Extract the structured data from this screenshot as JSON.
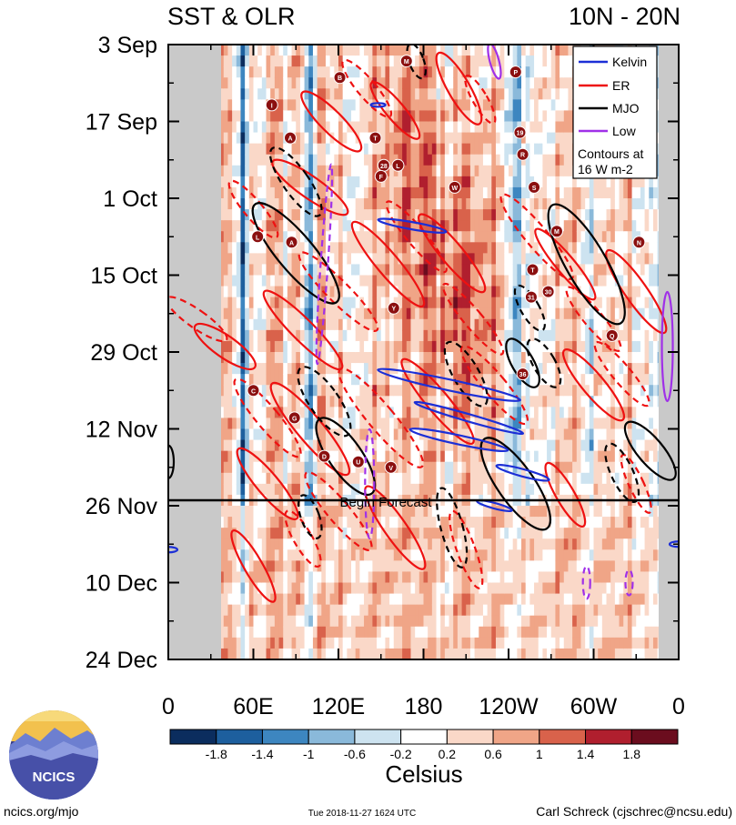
{
  "chart_data": {
    "type": "heatmap",
    "title_left": "SST & OLR",
    "title_right": "10N - 20N",
    "x_tick_labels": [
      "0",
      "60E",
      "120E",
      "180",
      "120W",
      "60W",
      "0"
    ],
    "x_ticks_deg": [
      0,
      60,
      120,
      180,
      240,
      300,
      360
    ],
    "y_tick_labels": [
      "3 Sep",
      "17 Sep",
      "1 Oct",
      "15 Oct",
      "29 Oct",
      "12 Nov",
      "26 Nov",
      "10 Dec",
      "24 Dec"
    ],
    "y_ticks_day": [
      0,
      14,
      28,
      42,
      56,
      70,
      84,
      98,
      112
    ],
    "xlim_deg": [
      0,
      360
    ],
    "ylim_days": [
      0,
      112
    ],
    "forecast_line": {
      "day": 83,
      "label": "Begin Forecast"
    },
    "legend": {
      "entries": [
        {
          "name": "Kelvin",
          "color": "#1c2fd6",
          "style": "solid"
        },
        {
          "name": "ER",
          "color": "#ee1111",
          "style": "solid"
        },
        {
          "name": "MJO",
          "color": "#000000",
          "style": "solid"
        },
        {
          "name": "Low",
          "color": "#a030e8",
          "style": "solid"
        }
      ],
      "note_line1": "Contours at",
      "note_line2": "16 W m-2"
    },
    "colorbar": {
      "label": "Celsius",
      "ticks": [
        "-1.8",
        "-1.4",
        "-1",
        "-0.6",
        "-0.2",
        "0.2",
        "0.6",
        "1",
        "1.4",
        "1.8"
      ],
      "colors": [
        "#0b2d5e",
        "#1d5f9e",
        "#3d86c0",
        "#8ab9da",
        "#cde3f0",
        "#ffffff",
        "#fad8c8",
        "#f0a587",
        "#d9624b",
        "#b01f2e",
        "#6b0d1e"
      ]
    },
    "storms": [
      {
        "label": "M",
        "lon": 168,
        "day": 3
      },
      {
        "label": "P",
        "lon": 245,
        "day": 5
      },
      {
        "label": "B",
        "lon": 121,
        "day": 6
      },
      {
        "label": "I",
        "lon": 73,
        "day": 11
      },
      {
        "label": "19",
        "lon": 248,
        "day": 16
      },
      {
        "label": "T",
        "lon": 146,
        "day": 17
      },
      {
        "label": "A",
        "lon": 86,
        "day": 17
      },
      {
        "label": "R",
        "lon": 250,
        "day": 20
      },
      {
        "label": "28",
        "lon": 152,
        "day": 22
      },
      {
        "label": "L",
        "lon": 162,
        "day": 22
      },
      {
        "label": "F",
        "lon": 150,
        "day": 24
      },
      {
        "label": "W",
        "lon": 202,
        "day": 26
      },
      {
        "label": "S",
        "lon": 258,
        "day": 26
      },
      {
        "label": "M",
        "lon": 274,
        "day": 34
      },
      {
        "label": "L",
        "lon": 63,
        "day": 35
      },
      {
        "label": "A",
        "lon": 87,
        "day": 36
      },
      {
        "label": "N",
        "lon": 332,
        "day": 36
      },
      {
        "label": "T",
        "lon": 257,
        "day": 41
      },
      {
        "label": "31",
        "lon": 256,
        "day": 46
      },
      {
        "label": "30",
        "lon": 268,
        "day": 45
      },
      {
        "label": "Y",
        "lon": 159,
        "day": 48
      },
      {
        "label": "Q",
        "lon": 313,
        "day": 53
      },
      {
        "label": "36",
        "lon": 250,
        "day": 60
      },
      {
        "label": "C",
        "lon": 60,
        "day": 63
      },
      {
        "label": "G",
        "lon": 89,
        "day": 68
      },
      {
        "label": "D",
        "lon": 110,
        "day": 75
      },
      {
        "label": "U",
        "lon": 134,
        "day": 76
      },
      {
        "label": "V",
        "lon": 157,
        "day": 77
      }
    ]
  },
  "footer": {
    "logo_text": "NCICS",
    "website": "ncics.org/mjo",
    "timestamp": "Tue 2018-11-27 1624 UTC",
    "author": "Carl Schreck (cjschrec@ncsu.edu)"
  }
}
